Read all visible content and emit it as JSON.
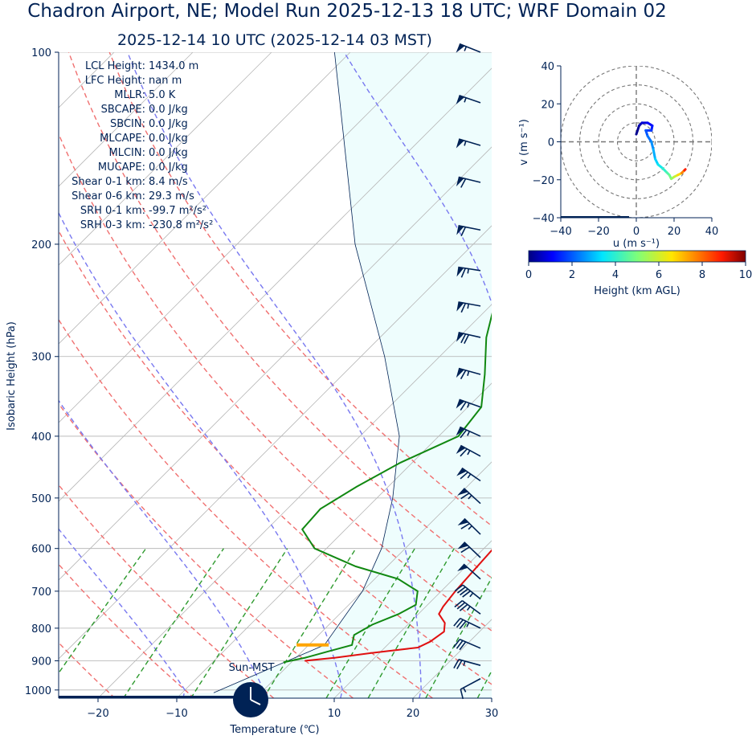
{
  "header": {
    "title": "Chadron Airport, NE; Model Run 2025-12-13 18 UTC; WRF Domain 02",
    "subtitle": "2025-12-14 10 UTC  (2025-12-14 03 MST)"
  },
  "stats": [
    {
      "label": "LCL Height:",
      "value": "1434.0 m"
    },
    {
      "label": "LFC Height:",
      "value": "nan m"
    },
    {
      "label": "MLLR:",
      "value": "5.0 K"
    },
    {
      "label": "SBCAPE:",
      "value": "0.0 J/kg"
    },
    {
      "label": "SBCIN:",
      "value": "0.0 J/kg"
    },
    {
      "label": "MLCAPE:",
      "value": "0.0 J/kg"
    },
    {
      "label": "MLCIN:",
      "value": "0.0 J/kg"
    },
    {
      "label": "MUCAPE:",
      "value": "0.0 J/kg"
    },
    {
      "label": "Shear 0-1 km:",
      "value": "8.4 m/s"
    },
    {
      "label": "Shear 0-6 km:",
      "value": "29.3 m/s"
    },
    {
      "label": "SRH 0-1 km:",
      "value": "-99.7 m²/s²"
    },
    {
      "label": "SRH 0-3 km:",
      "value": "-230.8 m²/s²"
    }
  ],
  "sun_label": "Sun-MST",
  "chart_data": [
    {
      "type": "line",
      "name": "skew-t",
      "xlabel": "Temperature (℃)",
      "ylabel": "Isobaric Height (hPa)",
      "xlim": [
        -25,
        30
      ],
      "ylim": [
        1030,
        100
      ],
      "x_ticks": [
        -20,
        -10,
        0,
        10,
        20,
        30
      ],
      "y_ticks": [
        100,
        200,
        300,
        400,
        500,
        600,
        700,
        800,
        900,
        1000
      ],
      "temperature": [
        [
          900,
          1.5
        ],
        [
          890,
          5
        ],
        [
          875,
          9
        ],
        [
          858,
          14.2
        ],
        [
          840,
          15
        ],
        [
          810,
          15.5
        ],
        [
          785,
          14.5
        ],
        [
          760,
          12.6
        ],
        [
          740,
          12.2
        ],
        [
          700,
          11.8
        ],
        [
          650,
          11.5
        ],
        [
          600,
          11.2
        ],
        [
          560,
          11
        ],
        [
          520,
          10.4
        ],
        [
          480,
          8.7
        ],
        [
          440,
          5.8
        ],
        [
          400,
          2.7
        ],
        [
          360,
          -0.4
        ],
        [
          320,
          -2.8
        ],
        [
          280,
          -4.6
        ],
        [
          250,
          -5.7
        ],
        [
          220,
          -6.5
        ],
        [
          200,
          -6.2
        ],
        [
          180,
          -5.8
        ],
        [
          160,
          -2.8
        ],
        [
          140,
          0.5
        ],
        [
          120,
          4.3
        ],
        [
          100,
          9.5
        ]
      ],
      "dewpoint": [
        [
          905,
          -1
        ],
        [
          890,
          1.2
        ],
        [
          870,
          3.3
        ],
        [
          850,
          5.5
        ],
        [
          820,
          4.5
        ],
        [
          790,
          5.5
        ],
        [
          760,
          7.5
        ],
        [
          735,
          8.5
        ],
        [
          700,
          7
        ],
        [
          670,
          3
        ],
        [
          640,
          -4
        ],
        [
          600,
          -11.5
        ],
        [
          560,
          -15.5
        ],
        [
          520,
          -15.8
        ],
        [
          480,
          -14
        ],
        [
          440,
          -11.5
        ],
        [
          400,
          -7.5
        ],
        [
          360,
          -8.3
        ],
        [
          320,
          -12
        ],
        [
          280,
          -16.5
        ],
        [
          250,
          -19.5
        ],
        [
          220,
          -21.5
        ],
        [
          200,
          -21.5
        ],
        [
          160,
          -16
        ],
        [
          130,
          -12
        ],
        [
          100,
          -6
        ]
      ],
      "parcel_profile": [
        [
          1010,
          -6
        ],
        [
          850,
          2
        ],
        [
          700,
          0
        ],
        [
          600,
          -3
        ],
        [
          500,
          -8
        ],
        [
          400,
          -15
        ],
        [
          300,
          -27
        ],
        [
          200,
          -45
        ],
        [
          100,
          -72
        ]
      ],
      "lcl_pressure_hpa": 850,
      "lcl_temperature_c": 0.5,
      "dry_adiabats_c": [
        -30,
        -20,
        -10,
        0,
        10,
        20,
        30,
        40,
        50,
        60
      ],
      "moist_adiabats_c": [
        -10,
        0,
        10,
        20,
        30
      ],
      "mixing_ratios_gkg": [
        0.4,
        1,
        2,
        4,
        7,
        10,
        16,
        24
      ],
      "wind_barbs_kt": [
        [
          960,
          15,
          8
        ],
        [
          915,
          22,
          -6
        ],
        [
          860,
          28,
          -12
        ],
        [
          800,
          33,
          -16
        ],
        [
          760,
          30,
          -22
        ],
        [
          720,
          35,
          -28
        ],
        [
          670,
          38,
          -34
        ],
        [
          620,
          42,
          -40
        ],
        [
          570,
          45,
          -44
        ],
        [
          510,
          48,
          -44
        ],
        [
          470,
          52,
          -36
        ],
        [
          430,
          55,
          -30
        ],
        [
          400,
          58,
          -26
        ],
        [
          360,
          62,
          -22
        ],
        [
          320,
          65,
          -18
        ],
        [
          280,
          66,
          -15
        ],
        [
          250,
          66,
          -12
        ],
        [
          220,
          64,
          -10
        ],
        [
          190,
          60,
          -12
        ],
        [
          160,
          57,
          -14
        ],
        [
          140,
          54,
          -16
        ],
        [
          120,
          52,
          -18
        ],
        [
          100,
          50,
          -20
        ]
      ]
    },
    {
      "type": "line",
      "name": "hodograph",
      "xlabel": "u (m s⁻¹)",
      "ylabel": "v (m s⁻¹)",
      "xlim": [
        -40,
        40
      ],
      "ylim": [
        -40,
        40
      ],
      "x_ticks": [
        -40,
        -20,
        0,
        20,
        40
      ],
      "y_ticks": [
        -40,
        -20,
        0,
        20,
        40
      ],
      "rings_ms": [
        10,
        20,
        30,
        40
      ],
      "points": [
        [
          0,
          4,
          0
        ],
        [
          1.5,
          8.5,
          0.3
        ],
        [
          3,
          10,
          0.6
        ],
        [
          6,
          10,
          0.9
        ],
        [
          8.5,
          8.5,
          1.2
        ],
        [
          8,
          6,
          1.5
        ],
        [
          5,
          6,
          1.8
        ],
        [
          6,
          3,
          2.1
        ],
        [
          8,
          0,
          2.4
        ],
        [
          9,
          -4,
          2.7
        ],
        [
          10,
          -9,
          3.0
        ],
        [
          11.5,
          -12,
          3.4
        ],
        [
          14,
          -14,
          3.8
        ],
        [
          16,
          -16,
          4.2
        ],
        [
          17.5,
          -17.5,
          4.6
        ],
        [
          18.5,
          -19.5,
          5.0
        ],
        [
          20,
          -18.5,
          5.6
        ],
        [
          22,
          -17.5,
          6.3
        ],
        [
          24,
          -16.5,
          7.2
        ],
        [
          25.5,
          -15,
          8.2
        ],
        [
          26,
          -14.5,
          9.5
        ]
      ],
      "colorbar": {
        "label": "Height (km AGL)",
        "min": 0,
        "max": 10,
        "ticks": [
          0,
          2,
          4,
          6,
          8,
          10
        ]
      }
    }
  ]
}
